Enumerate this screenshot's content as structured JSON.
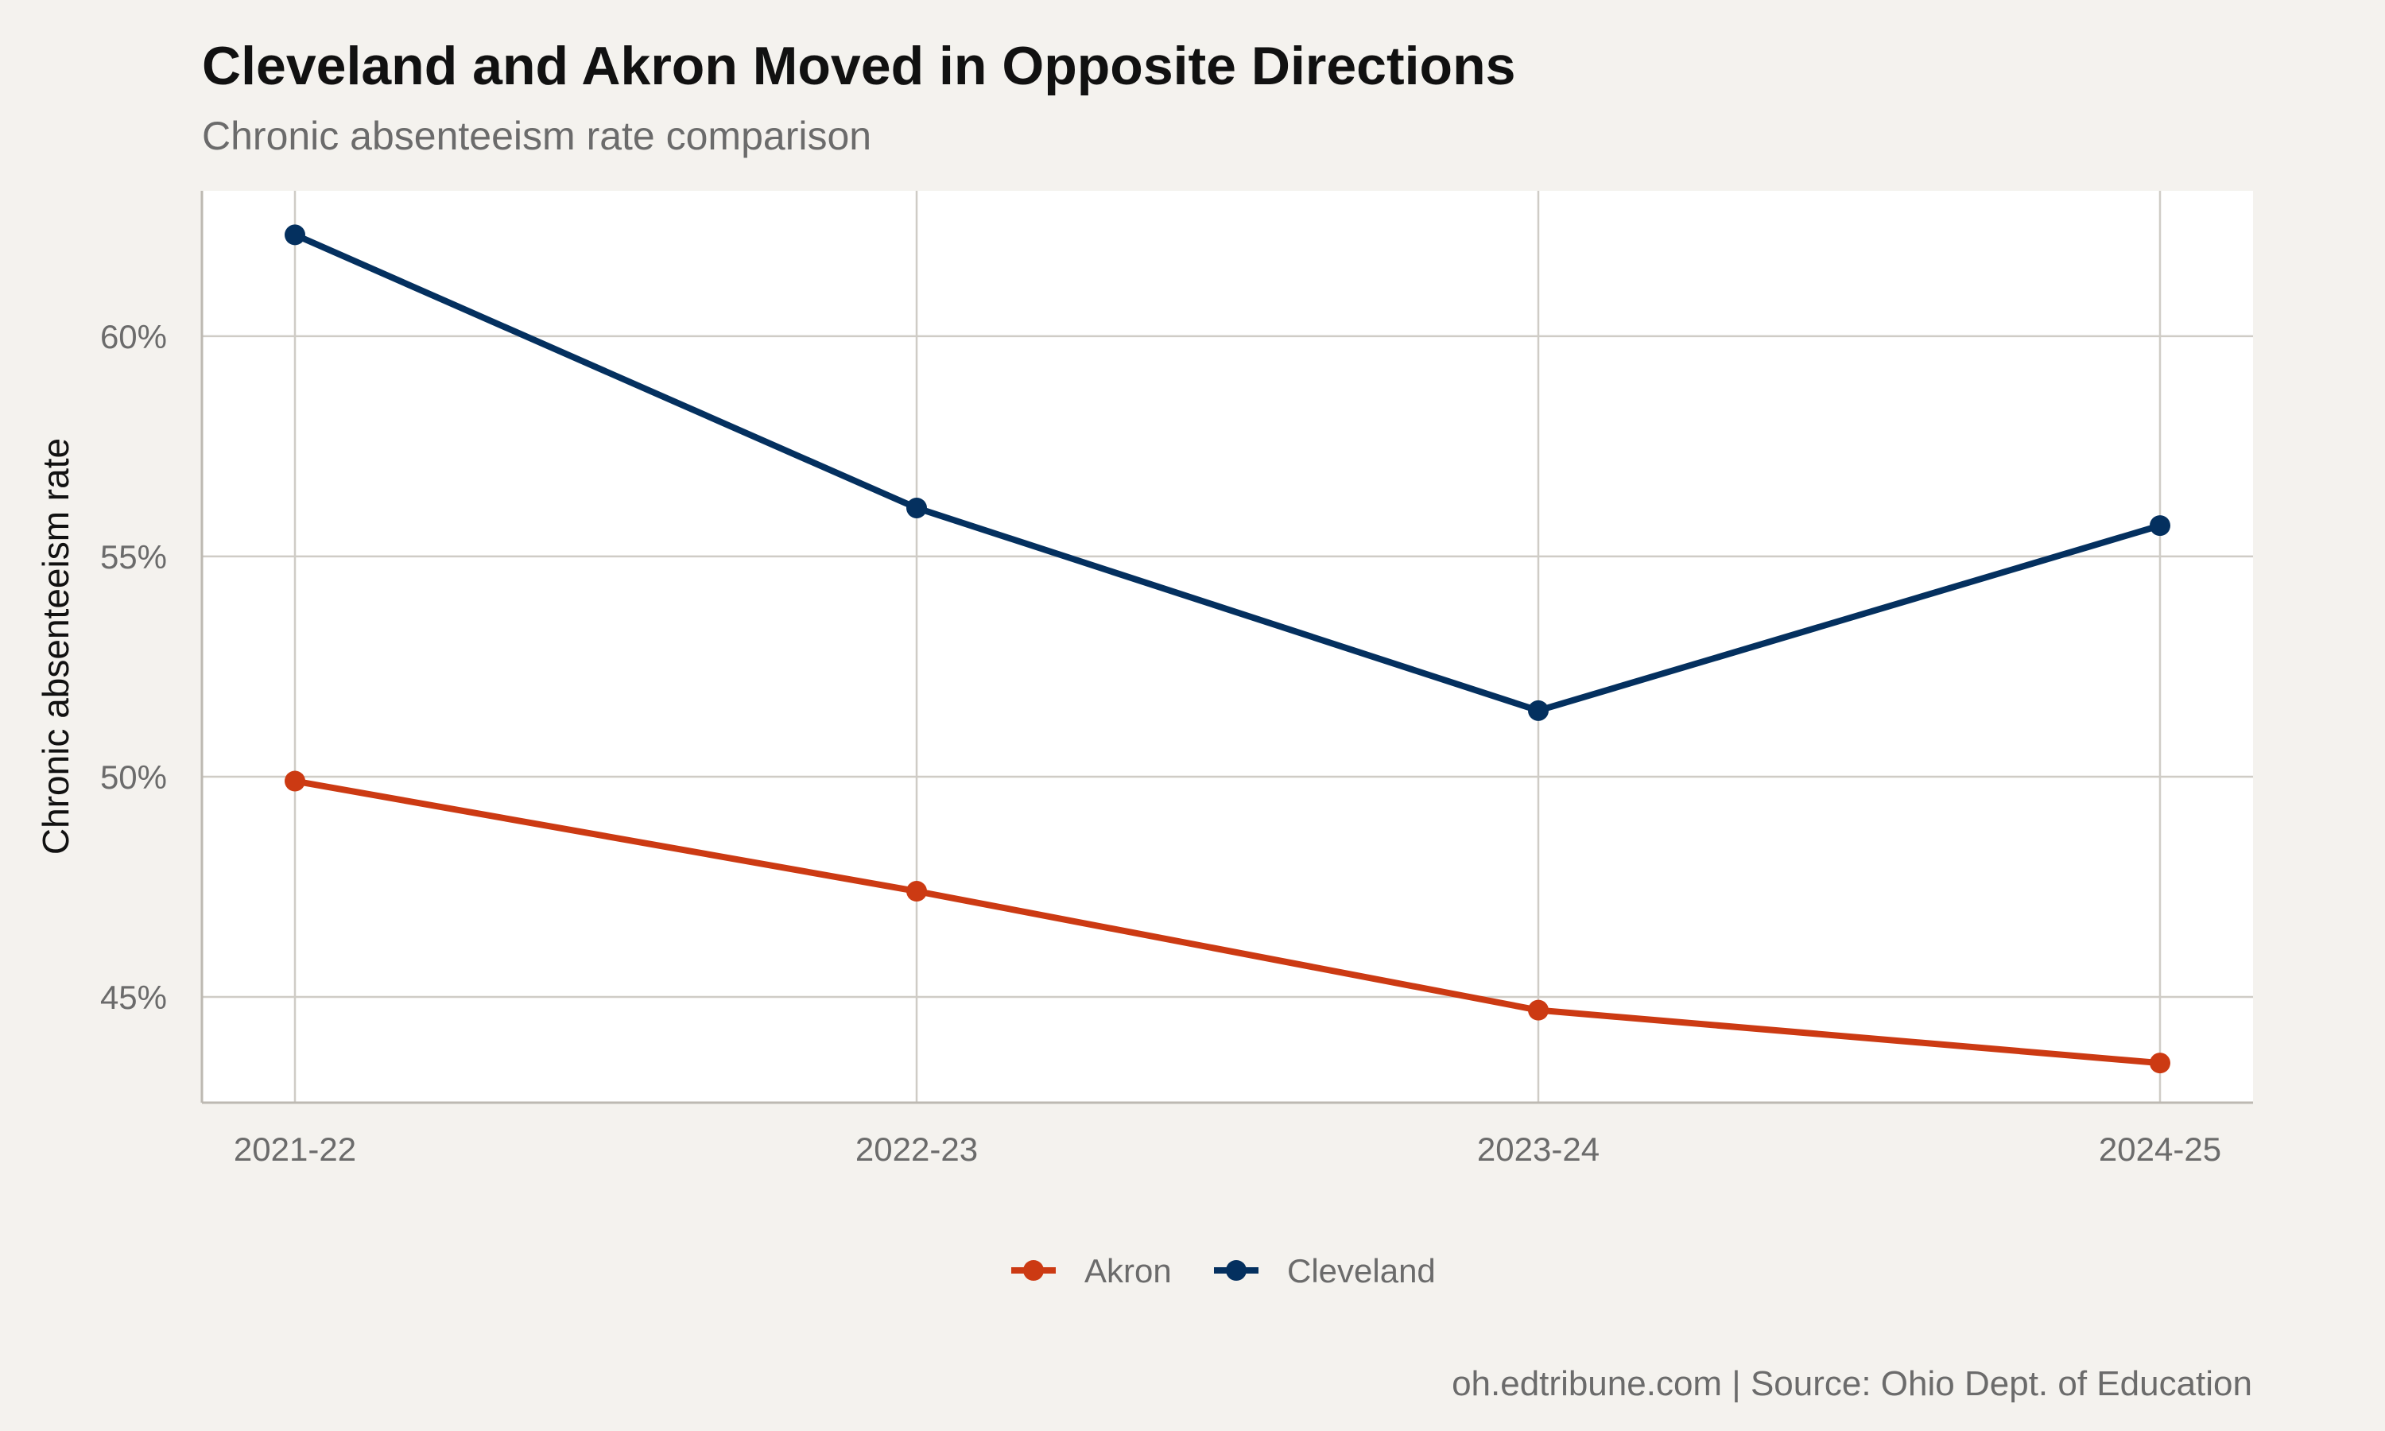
{
  "chart_data": {
    "type": "line",
    "title": "Cleveland and Akron Moved in Opposite Directions",
    "subtitle": "Chronic absenteeism rate comparison",
    "ylabel": "Chronic absenteeism rate",
    "xlabel": "",
    "categories": [
      "2021-22",
      "2022-23",
      "2023-24",
      "2024-25"
    ],
    "y_ticks": [
      45,
      50,
      55,
      60
    ],
    "y_tick_labels": [
      "45%",
      "50%",
      "55%",
      "60%"
    ],
    "ylim": [
      42.6,
      63.3
    ],
    "grid": true,
    "legend_position": "bottom",
    "series": [
      {
        "name": "Akron",
        "color": "#cc3a13",
        "values": [
          49.9,
          47.4,
          44.7,
          43.5
        ]
      },
      {
        "name": "Cleveland",
        "color": "#04305f",
        "values": [
          62.3,
          56.1,
          51.5,
          55.7
        ]
      }
    ],
    "caption": "oh.edtribune.com | Source: Ohio Dept. of Education"
  }
}
